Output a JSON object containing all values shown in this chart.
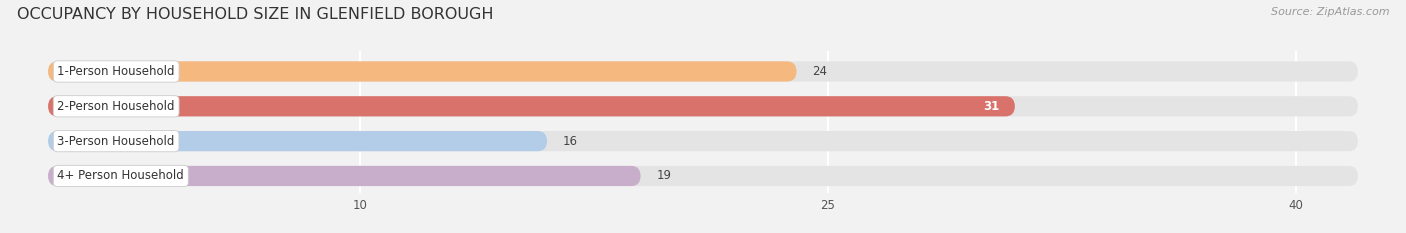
{
  "title": "OCCUPANCY BY HOUSEHOLD SIZE IN GLENFIELD BOROUGH",
  "source": "Source: ZipAtlas.com",
  "categories": [
    "1-Person Household",
    "2-Person Household",
    "3-Person Household",
    "4+ Person Household"
  ],
  "values": [
    24,
    31,
    16,
    19
  ],
  "bar_colors": [
    "#f5b87e",
    "#d9726a",
    "#b3cce8",
    "#c9aecb"
  ],
  "label_text_colors": [
    "#444444",
    "#444444",
    "#444444",
    "#444444"
  ],
  "value_text_colors": [
    "#444444",
    "#ffffff",
    "#444444",
    "#444444"
  ],
  "xlim": [
    -1,
    43
  ],
  "xticks": [
    10,
    25,
    40
  ],
  "background_color": "#f2f2f2",
  "bar_bg_color": "#e4e4e4",
  "bar_height": 0.58,
  "title_fontsize": 11.5,
  "label_fontsize": 8.5,
  "value_fontsize": 8.5,
  "source_fontsize": 8,
  "rounding_size": 0.3
}
